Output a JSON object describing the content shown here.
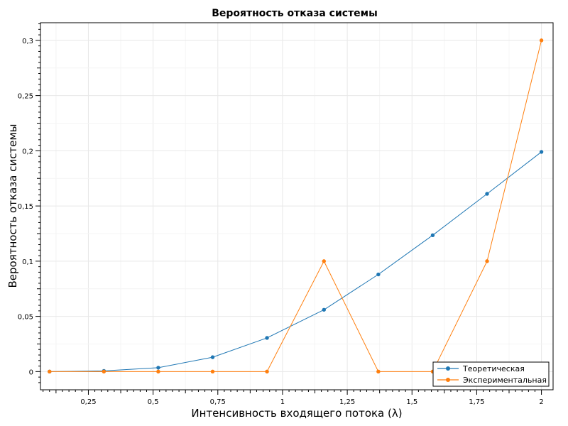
{
  "chart_data": {
    "type": "line",
    "title": "Вероятность отказа системы",
    "xlabel": "Интенсивность входящего потока (λ)",
    "ylabel": "Вероятность отказа системы",
    "xlim": [
      0.065,
      2.045
    ],
    "ylim": [
      -0.0165,
      0.316
    ],
    "x_ticks": [
      0.25,
      0.5,
      0.75,
      1,
      1.25,
      1.5,
      1.75,
      2
    ],
    "x_tick_labels": [
      "0,25",
      "0,5",
      "0,75",
      "1",
      "1,25",
      "1,5",
      "1,75",
      "2"
    ],
    "y_ticks": [
      0,
      0.05,
      0.1,
      0.15,
      0.2,
      0.25,
      0.3
    ],
    "y_tick_labels": [
      "0",
      "0,05",
      "0,1",
      "0,15",
      "0,2",
      "0,25",
      "0,3"
    ],
    "grid": true,
    "legend_position": "bottom-right",
    "x": [
      0.1,
      0.31,
      0.52,
      0.73,
      0.94,
      1.16,
      1.37,
      1.58,
      1.79,
      2.0
    ],
    "series": [
      {
        "name": "Теоретическая",
        "color": "#1f77b4",
        "values": [
          0.0,
          0.0006,
          0.0035,
          0.013,
          0.0305,
          0.056,
          0.088,
          0.1235,
          0.161,
          0.199
        ]
      },
      {
        "name": "Экспериментальная",
        "color": "#ff7f0e",
        "values": [
          0.0,
          0.0,
          0.0,
          0.0,
          0.0,
          0.1,
          0.0,
          0.0,
          0.1,
          0.3
        ]
      }
    ]
  }
}
